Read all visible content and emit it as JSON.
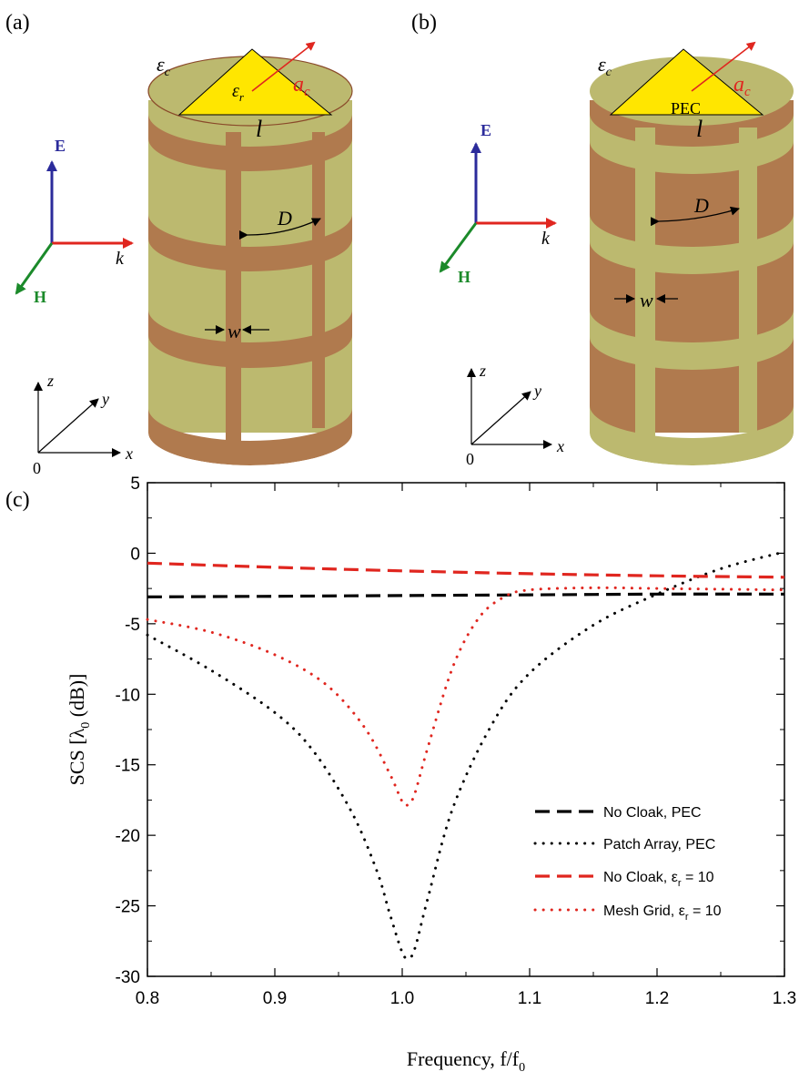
{
  "panels": {
    "a": {
      "label": "(a)",
      "eps_c": "ε",
      "eps_c_sub": "c",
      "eps_r": "ε",
      "eps_r_sub": "r",
      "a_c": "a",
      "a_c_sub": "c",
      "l": "l",
      "D": "D",
      "w": "w",
      "E": "E",
      "H": "H",
      "k": "k",
      "x": "x",
      "y": "y",
      "z": "z",
      "origin": "0"
    },
    "b": {
      "label": "(b)",
      "eps_c": "ε",
      "eps_c_sub": "c",
      "core": "PEC",
      "a_c": "a",
      "a_c_sub": "c",
      "l": "l",
      "D": "D",
      "w": "w",
      "E": "E",
      "H": "H",
      "k": "k",
      "x": "x",
      "y": "y",
      "z": "z",
      "origin": "0"
    },
    "c": {
      "label": "(c)"
    }
  },
  "colors": {
    "cylinder_olive": "#bcb96f",
    "cylinder_brown": "#b07a4e",
    "triangle_yellow": "#ffe600",
    "E_arrow": "#2b2b9b",
    "H_arrow": "#1b8a2a",
    "k_arrow": "#e0261f",
    "black_series": "#000000",
    "red_series": "#e0261f"
  },
  "chart_data": {
    "type": "line",
    "xlabel_main": "Frequency, f/f",
    "xlabel_sub": "0",
    "ylabel_main": "SCS [λ",
    "ylabel_sub": "0",
    "ylabel_tail": " (dB)]",
    "xlim": [
      0.8,
      1.3
    ],
    "ylim": [
      -30,
      5
    ],
    "xticks": [
      "0.8",
      "0.9",
      "1.0",
      "1.1",
      "1.2",
      "1.3"
    ],
    "yticks": [
      "5",
      "0",
      "-5",
      "-10",
      "-15",
      "-20",
      "-25",
      "-30"
    ],
    "legend_position": "bottom-right",
    "series": [
      {
        "name": "No Cloak, PEC",
        "color": "#000000",
        "style": "dashed",
        "x": [
          0.8,
          0.9,
          1.0,
          1.1,
          1.2,
          1.3
        ],
        "y": [
          -3.1,
          -3.05,
          -3.0,
          -2.95,
          -2.9,
          -2.9
        ]
      },
      {
        "name": "Patch Array, PEC",
        "color": "#000000",
        "style": "dotted",
        "x": [
          0.8,
          0.85,
          0.9,
          0.93,
          0.96,
          0.98,
          0.99,
          1.0,
          1.005,
          1.01,
          1.02,
          1.04,
          1.07,
          1.1,
          1.15,
          1.2,
          1.25,
          1.3
        ],
        "y": [
          -5.8,
          -8.3,
          -11.3,
          -14.0,
          -18.3,
          -22.5,
          -25.5,
          -28.3,
          -28.7,
          -28.0,
          -24.5,
          -18.0,
          -12.2,
          -8.5,
          -5.1,
          -2.9,
          -1.1,
          0.1
        ]
      },
      {
        "name": "No Cloak, ε",
        "name_sub": "r",
        "name_tail": " = 10",
        "color": "#e0261f",
        "style": "dashed",
        "x": [
          0.8,
          0.9,
          1.0,
          1.1,
          1.2,
          1.3
        ],
        "y": [
          -0.7,
          -1.0,
          -1.25,
          -1.45,
          -1.6,
          -1.7
        ]
      },
      {
        "name": "Mesh Grid, ε",
        "name_sub": "r",
        "name_tail": " = 10",
        "color": "#e0261f",
        "style": "dotted",
        "x": [
          0.8,
          0.85,
          0.9,
          0.94,
          0.97,
          0.99,
          1.0,
          1.005,
          1.01,
          1.02,
          1.04,
          1.06,
          1.08,
          1.1,
          1.15,
          1.2,
          1.25,
          1.3
        ],
        "y": [
          -4.7,
          -5.6,
          -7.2,
          -9.3,
          -12.3,
          -15.6,
          -17.6,
          -17.8,
          -17.0,
          -13.8,
          -8.0,
          -4.6,
          -3.1,
          -2.6,
          -2.45,
          -2.5,
          -2.55,
          -2.6
        ]
      }
    ]
  }
}
